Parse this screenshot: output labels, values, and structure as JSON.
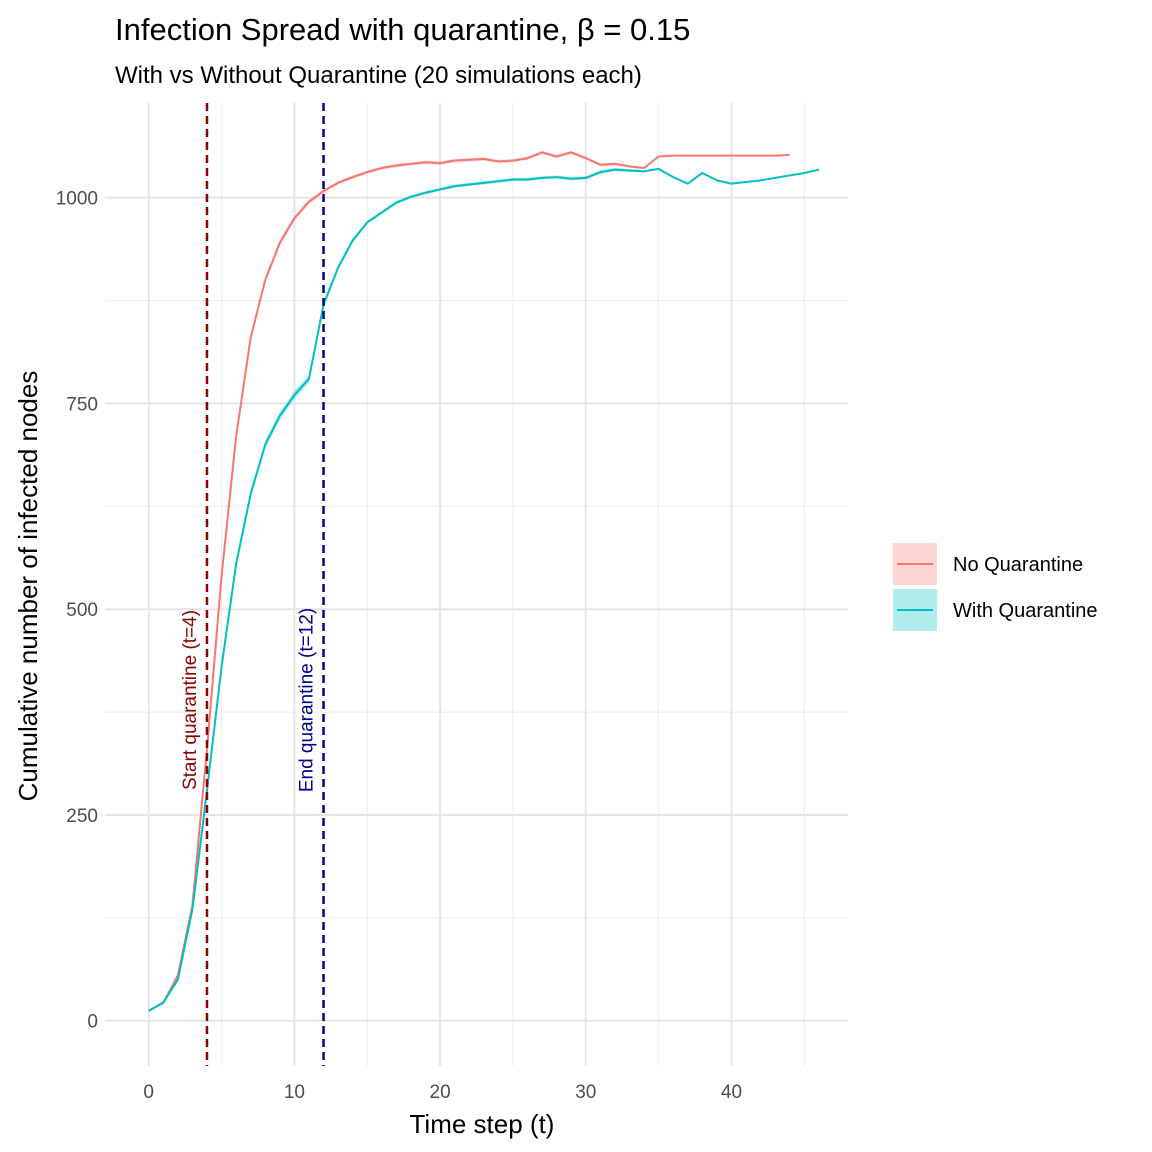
{
  "chart_data": {
    "type": "line",
    "title": "Infection Spread with quarantine, β = 0.15",
    "subtitle": "With vs Without Quarantine (20 simulations each)",
    "xlabel": "Time step (t)",
    "ylabel": "Cumulative number of infected nodes",
    "xlim": [
      -3,
      48
    ],
    "ylim": [
      -55,
      1115
    ],
    "x_ticks": [
      0,
      10,
      20,
      30,
      40
    ],
    "y_ticks": [
      0,
      250,
      500,
      750,
      1000
    ],
    "grid": true,
    "legend_position": "right",
    "series": [
      {
        "name": "No Quarantine",
        "color": "#F8766D",
        "x": [
          0,
          1,
          2,
          3,
          4,
          5,
          6,
          7,
          8,
          9,
          10,
          11,
          12,
          13,
          14,
          15,
          16,
          17,
          18,
          19,
          20,
          21,
          22,
          23,
          24,
          25,
          26,
          27,
          28,
          29,
          30,
          31,
          32,
          33,
          34,
          35,
          36,
          37,
          38,
          39,
          40,
          41,
          42,
          43,
          44
        ],
        "y": [
          12,
          22,
          55,
          140,
          330,
          540,
          710,
          830,
          900,
          945,
          975,
          995,
          1008,
          1018,
          1025,
          1031,
          1036,
          1039,
          1041,
          1043,
          1042,
          1045,
          1046,
          1047,
          1044,
          1045,
          1048,
          1055,
          1050,
          1055,
          1048,
          1040,
          1041,
          1038,
          1036,
          1050,
          1051,
          1051,
          1051,
          1051,
          1051,
          1051,
          1051,
          1051,
          1052
        ],
        "ribbon_halfwidth": [
          1,
          2,
          3,
          4,
          5,
          5,
          5,
          5,
          4,
          4,
          3,
          3,
          2,
          2,
          2,
          2,
          2,
          2,
          2,
          2,
          2,
          2,
          2,
          2,
          2,
          2,
          2,
          2,
          2,
          2,
          2,
          2,
          2,
          1,
          1,
          1,
          1,
          1,
          1,
          1,
          1,
          1,
          1,
          1,
          1
        ]
      },
      {
        "name": "With Quarantine",
        "color": "#00BFC4",
        "x": [
          0,
          1,
          2,
          3,
          4,
          5,
          6,
          7,
          8,
          9,
          10,
          11,
          12,
          13,
          14,
          15,
          16,
          17,
          18,
          19,
          20,
          21,
          22,
          23,
          24,
          25,
          26,
          27,
          28,
          29,
          30,
          31,
          32,
          33,
          34,
          35,
          36,
          37,
          38,
          39,
          40,
          41,
          42,
          43,
          44,
          45,
          46
        ],
        "y": [
          12,
          22,
          50,
          135,
          280,
          430,
          555,
          640,
          700,
          735,
          760,
          780,
          870,
          915,
          948,
          970,
          982,
          994,
          1001,
          1006,
          1010,
          1014,
          1016,
          1018,
          1020,
          1022,
          1022,
          1024,
          1025,
          1023,
          1024,
          1031,
          1034,
          1033,
          1032,
          1035,
          1025,
          1017,
          1030,
          1021,
          1017,
          1019,
          1021,
          1024,
          1027,
          1030,
          1034
        ],
        "ribbon_halfwidth": [
          1,
          2,
          3,
          4,
          5,
          5,
          5,
          5,
          5,
          5,
          5,
          5,
          4,
          3,
          3,
          2,
          2,
          2,
          2,
          2,
          2,
          2,
          2,
          2,
          2,
          2,
          2,
          2,
          2,
          2,
          2,
          2,
          2,
          2,
          1,
          1,
          1,
          1,
          1,
          1,
          1,
          1,
          1,
          1,
          1,
          1,
          1
        ]
      }
    ],
    "annotations": [
      {
        "x": 4,
        "label": "Start quarantine (t=4)",
        "color": "#8B0000"
      },
      {
        "x": 12,
        "label": "End quarantine (t=12)",
        "color": "#00008B"
      }
    ]
  }
}
